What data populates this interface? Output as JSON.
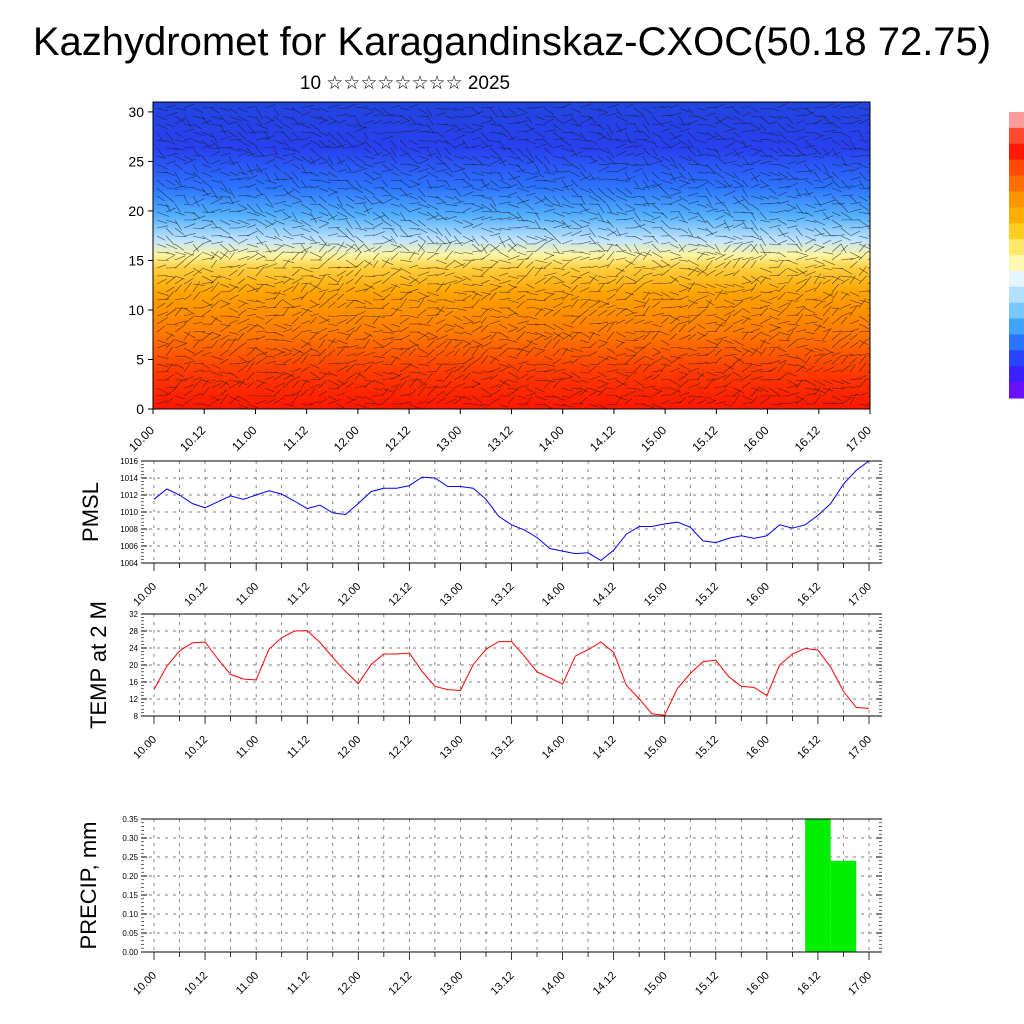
{
  "title": "Kazhydromet for Karagandinskaz-CXOC(50.18 72.75)",
  "subtitle": "10 ☆☆☆☆☆☆☆☆ 2025",
  "time_labels": [
    "10.00",
    "10.12",
    "11.00",
    "11.12",
    "12.00",
    "12.12",
    "13.00",
    "13.12",
    "14.00",
    "14.12",
    "15.00",
    "15.12",
    "16.00",
    "16.12",
    "17.00"
  ],
  "colorbar_colors": [
    "#ff9a9a",
    "#ff4a30",
    "#ff1a00",
    "#ff4a00",
    "#ff6e00",
    "#ff9600",
    "#ffb000",
    "#ffcc20",
    "#ffe86a",
    "#fff8b0",
    "#e6f4ff",
    "#b4e0ff",
    "#78c8ff",
    "#3ea4ff",
    "#2a74ff",
    "#2844ff",
    "#3a20ff",
    "#6a10ff"
  ],
  "chart_data": [
    {
      "type": "heatmap",
      "name": "cross-section",
      "y_ticks": [
        0,
        5,
        10,
        15,
        20,
        25,
        30
      ],
      "ylim": [
        0,
        31
      ],
      "x_range": [
        "10.00",
        "17.00"
      ],
      "note_colors": "warm near ground, cold aloft; wind barbs overlaid"
    },
    {
      "type": "line",
      "ylabel": "PMSL",
      "ylim": [
        1004,
        1016
      ],
      "y_ticks": [
        1004,
        1006,
        1008,
        1010,
        1012,
        1014,
        1016
      ],
      "color": "#0000ff",
      "x_hours": [
        0,
        3,
        6,
        9,
        12,
        15,
        18,
        21,
        24,
        27,
        30,
        33,
        36,
        39,
        42,
        45,
        48,
        51,
        54,
        57,
        60,
        63,
        66,
        69,
        72,
        75,
        78,
        81,
        84,
        87,
        90,
        93,
        96,
        99,
        102,
        105,
        108,
        111,
        114,
        117,
        120,
        123,
        126,
        129,
        132,
        135,
        138,
        141,
        144,
        147,
        150,
        153,
        156,
        159,
        162,
        165,
        168
      ],
      "values": [
        1011.5,
        1012.7,
        1012.0,
        1011.0,
        1010.5,
        1011.2,
        1011.9,
        1011.5,
        1012.0,
        1012.5,
        1012.1,
        1011.3,
        1010.4,
        1010.8,
        1009.9,
        1009.7,
        1011.0,
        1012.4,
        1012.8,
        1012.8,
        1013.1,
        1014.1,
        1014.0,
        1013.0,
        1013.0,
        1012.8,
        1011.5,
        1009.5,
        1008.5,
        1007.9,
        1007.0,
        1005.7,
        1005.4,
        1005.1,
        1005.2,
        1004.3,
        1005.5,
        1007.4,
        1008.3,
        1008.3,
        1008.6,
        1008.8,
        1008.2,
        1006.6,
        1006.4,
        1006.9,
        1007.2,
        1006.9,
        1007.2,
        1008.5,
        1008.1,
        1008.5,
        1009.6,
        1011.0,
        1013.3,
        1014.9,
        1016.0
      ]
    },
    {
      "type": "line",
      "ylabel": "TEMP at 2 M",
      "ylim": [
        8,
        32
      ],
      "y_ticks": [
        8,
        12,
        16,
        20,
        24,
        28,
        32
      ],
      "color": "#ff0000",
      "x_hours": [
        0,
        3,
        6,
        9,
        12,
        15,
        18,
        21,
        24,
        27,
        30,
        33,
        36,
        39,
        42,
        45,
        48,
        51,
        54,
        57,
        60,
        63,
        66,
        69,
        72,
        75,
        78,
        81,
        84,
        87,
        90,
        93,
        96,
        99,
        102,
        105,
        108,
        111,
        114,
        117,
        120,
        123,
        126,
        129,
        132,
        135,
        138,
        141,
        144,
        147,
        150,
        153,
        156,
        159,
        162,
        165,
        168
      ],
      "values": [
        14.2,
        19.7,
        23.3,
        25.2,
        25.4,
        21.4,
        17.8,
        16.7,
        16.5,
        23.7,
        26.4,
        28.0,
        28.1,
        25.3,
        21.8,
        18.5,
        15.6,
        20.1,
        22.6,
        22.6,
        22.8,
        18.5,
        15.0,
        14.2,
        14.0,
        20.1,
        23.7,
        25.5,
        25.5,
        22.1,
        18.4,
        17.0,
        15.5,
        22.1,
        23.6,
        25.4,
        23.0,
        15.2,
        12.1,
        8.5,
        8.2,
        14.5,
        18.0,
        20.8,
        21.1,
        17.3,
        15.0,
        14.7,
        12.8,
        20.0,
        22.6,
        23.9,
        23.5,
        19.5,
        13.8,
        10.0,
        9.8
      ]
    },
    {
      "type": "bar",
      "ylabel": "PRECIP, mm",
      "ylim": [
        0,
        0.35
      ],
      "y_ticks": [
        0.0,
        0.05,
        0.1,
        0.15,
        0.2,
        0.25,
        0.3,
        0.35
      ],
      "color": "#00ee00",
      "bars": [
        {
          "start_hour": 153,
          "end_hour": 159,
          "value": 0.35
        },
        {
          "start_hour": 159,
          "end_hour": 165,
          "value": 0.24
        }
      ]
    }
  ]
}
